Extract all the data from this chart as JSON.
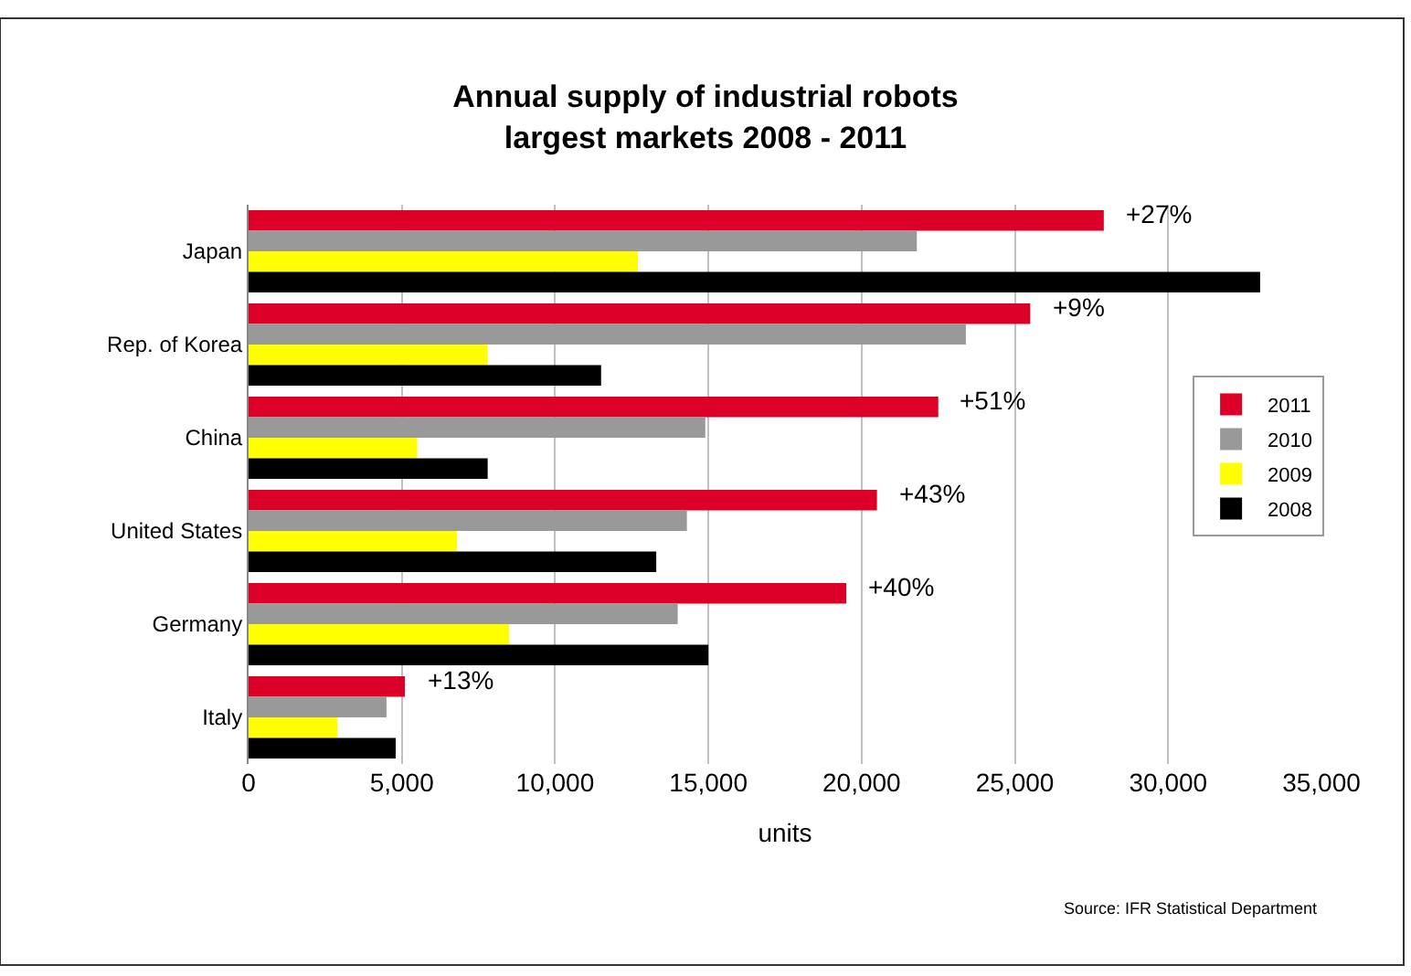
{
  "chart_data": {
    "type": "bar",
    "orientation": "horizontal",
    "title": "Annual supply of industrial robots\nlargest markets 2008 - 2011",
    "xlabel": "units",
    "categories": [
      "Japan",
      "Rep. of Korea",
      "China",
      "United States",
      "Germany",
      "Italy"
    ],
    "series": [
      {
        "name": "2011",
        "color": "#dc0028",
        "values": [
          27900,
          25500,
          22500,
          20500,
          19500,
          5100
        ]
      },
      {
        "name": "2010",
        "color": "#999999",
        "values": [
          21800,
          23400,
          14900,
          14300,
          14000,
          4500
        ]
      },
      {
        "name": "2009",
        "color": "#ffff00",
        "values": [
          12700,
          7800,
          5500,
          6800,
          8500,
          2900
        ]
      },
      {
        "name": "2008",
        "color": "#000000",
        "values": [
          33000,
          11500,
          7800,
          13300,
          15000,
          4800
        ]
      }
    ],
    "xlim": [
      0,
      35000
    ],
    "xticks": [
      {
        "value": 0,
        "label": "0"
      },
      {
        "value": 5000,
        "label": "5,000"
      },
      {
        "value": 10000,
        "label": "10,000"
      },
      {
        "value": 15000,
        "label": "15,000"
      },
      {
        "value": 20000,
        "label": "20,000"
      },
      {
        "value": 25000,
        "label": "25,000"
      },
      {
        "value": 30000,
        "label": "30,000"
      },
      {
        "value": 35000,
        "label": "35,000"
      }
    ],
    "grid": "x",
    "legend": "right",
    "annotations": [
      "+27%",
      "+9%",
      "+51%",
      "+43%",
      "+40%",
      "+13%",
      "Source: IFR Statistical Department"
    ]
  }
}
